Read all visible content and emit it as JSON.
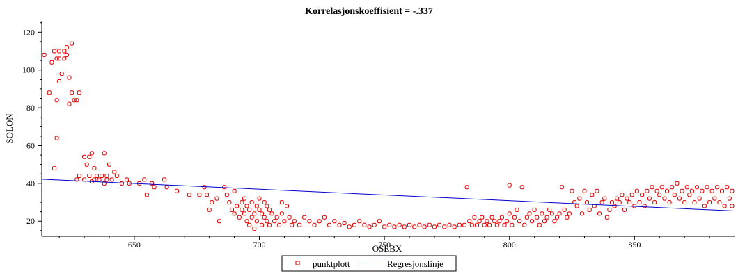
{
  "chart_data": {
    "type": "scatter",
    "title": "Korrelasjonskoeffisient =  -.337",
    "xlabel": "OSEBX",
    "ylabel": "SOLON",
    "xlim": [
      613,
      890
    ],
    "ylim": [
      12,
      126
    ],
    "x_ticks": [
      650,
      700,
      750,
      800,
      850
    ],
    "y_ticks": [
      20,
      40,
      60,
      80,
      100,
      120
    ],
    "legend_placement": "bottom-center",
    "colors": {
      "points": "#e00000",
      "line": "#0000cc",
      "axis": "#000000"
    },
    "series": [
      {
        "name": "punktplott",
        "kind": "scatter",
        "points": [
          [
            614,
            108
          ],
          [
            616,
            88
          ],
          [
            617,
            104
          ],
          [
            618,
            110
          ],
          [
            618,
            48
          ],
          [
            619,
            84
          ],
          [
            619,
            64
          ],
          [
            619,
            106
          ],
          [
            620,
            94
          ],
          [
            620,
            106
          ],
          [
            620,
            110
          ],
          [
            621,
            98
          ],
          [
            622,
            106
          ],
          [
            622,
            110
          ],
          [
            623,
            108
          ],
          [
            623,
            112
          ],
          [
            624,
            96
          ],
          [
            624,
            82
          ],
          [
            625,
            88
          ],
          [
            625,
            114
          ],
          [
            626,
            84
          ],
          [
            627,
            84
          ],
          [
            627,
            42
          ],
          [
            628,
            88
          ],
          [
            628,
            44
          ],
          [
            630,
            54
          ],
          [
            630,
            42
          ],
          [
            631,
            50
          ],
          [
            632,
            54
          ],
          [
            632,
            44
          ],
          [
            633,
            41
          ],
          [
            633,
            56
          ],
          [
            634,
            42
          ],
          [
            634,
            48
          ],
          [
            635,
            44
          ],
          [
            636,
            42
          ],
          [
            637,
            44
          ],
          [
            638,
            56
          ],
          [
            638,
            40
          ],
          [
            639,
            42
          ],
          [
            639,
            44
          ],
          [
            640,
            50
          ],
          [
            641,
            42
          ],
          [
            642,
            46
          ],
          [
            643,
            44
          ],
          [
            645,
            40
          ],
          [
            647,
            42
          ],
          [
            648,
            40
          ],
          [
            652,
            40
          ],
          [
            654,
            42
          ],
          [
            655,
            34
          ],
          [
            657,
            40
          ],
          [
            658,
            38
          ],
          [
            662,
            42
          ],
          [
            663,
            38
          ],
          [
            667,
            36
          ],
          [
            672,
            34
          ],
          [
            676,
            34
          ],
          [
            678,
            38
          ],
          [
            679,
            34
          ],
          [
            680,
            26
          ],
          [
            681,
            30
          ],
          [
            683,
            32
          ],
          [
            684,
            20
          ],
          [
            686,
            38
          ],
          [
            687,
            34
          ],
          [
            688,
            30
          ],
          [
            689,
            26
          ],
          [
            690,
            24
          ],
          [
            690,
            36
          ],
          [
            691,
            28
          ],
          [
            692,
            22
          ],
          [
            693,
            30
          ],
          [
            693,
            26
          ],
          [
            694,
            32
          ],
          [
            694,
            24
          ],
          [
            695,
            20
          ],
          [
            695,
            28
          ],
          [
            696,
            18
          ],
          [
            696,
            26
          ],
          [
            697,
            22
          ],
          [
            697,
            30
          ],
          [
            698,
            16
          ],
          [
            698,
            24
          ],
          [
            699,
            28
          ],
          [
            699,
            20
          ],
          [
            700,
            32
          ],
          [
            700,
            26
          ],
          [
            701,
            18
          ],
          [
            701,
            24
          ],
          [
            702,
            30
          ],
          [
            702,
            22
          ],
          [
            703,
            28
          ],
          [
            703,
            20
          ],
          [
            704,
            26
          ],
          [
            704,
            18
          ],
          [
            705,
            24
          ],
          [
            706,
            20
          ],
          [
            707,
            22
          ],
          [
            708,
            18
          ],
          [
            709,
            30
          ],
          [
            709,
            24
          ],
          [
            710,
            20
          ],
          [
            711,
            28
          ],
          [
            712,
            22
          ],
          [
            713,
            18
          ],
          [
            714,
            20
          ],
          [
            716,
            18
          ],
          [
            718,
            22
          ],
          [
            720,
            20
          ],
          [
            722,
            18
          ],
          [
            724,
            20
          ],
          [
            726,
            22
          ],
          [
            728,
            18
          ],
          [
            730,
            20
          ],
          [
            732,
            18
          ],
          [
            734,
            19
          ],
          [
            736,
            17
          ],
          [
            738,
            18
          ],
          [
            740,
            20
          ],
          [
            742,
            18
          ],
          [
            744,
            17
          ],
          [
            746,
            18
          ],
          [
            748,
            20
          ],
          [
            750,
            17
          ],
          [
            752,
            18
          ],
          [
            754,
            17
          ],
          [
            756,
            18
          ],
          [
            758,
            17
          ],
          [
            760,
            18
          ],
          [
            762,
            17
          ],
          [
            764,
            18
          ],
          [
            766,
            17
          ],
          [
            768,
            18
          ],
          [
            770,
            17
          ],
          [
            772,
            18
          ],
          [
            774,
            17
          ],
          [
            776,
            18
          ],
          [
            778,
            17
          ],
          [
            780,
            18
          ],
          [
            782,
            18
          ],
          [
            783,
            38
          ],
          [
            784,
            20
          ],
          [
            785,
            18
          ],
          [
            786,
            22
          ],
          [
            787,
            18
          ],
          [
            788,
            20
          ],
          [
            789,
            22
          ],
          [
            790,
            18
          ],
          [
            791,
            20
          ],
          [
            792,
            18
          ],
          [
            793,
            22
          ],
          [
            794,
            20
          ],
          [
            795,
            18
          ],
          [
            796,
            20
          ],
          [
            797,
            22
          ],
          [
            798,
            18
          ],
          [
            799,
            20
          ],
          [
            800,
            39
          ],
          [
            800,
            24
          ],
          [
            801,
            18
          ],
          [
            802,
            22
          ],
          [
            803,
            26
          ],
          [
            804,
            20
          ],
          [
            805,
            38
          ],
          [
            806,
            18
          ],
          [
            807,
            22
          ],
          [
            808,
            24
          ],
          [
            809,
            20
          ],
          [
            810,
            26
          ],
          [
            811,
            22
          ],
          [
            812,
            18
          ],
          [
            813,
            24
          ],
          [
            814,
            20
          ],
          [
            815,
            22
          ],
          [
            816,
            26
          ],
          [
            817,
            24
          ],
          [
            818,
            20
          ],
          [
            819,
            22
          ],
          [
            820,
            24
          ],
          [
            821,
            38
          ],
          [
            822,
            26
          ],
          [
            823,
            22
          ],
          [
            824,
            24
          ],
          [
            825,
            36
          ],
          [
            826,
            30
          ],
          [
            827,
            28
          ],
          [
            828,
            32
          ],
          [
            829,
            24
          ],
          [
            830,
            36
          ],
          [
            831,
            30
          ],
          [
            832,
            26
          ],
          [
            833,
            34
          ],
          [
            834,
            28
          ],
          [
            835,
            36
          ],
          [
            836,
            24
          ],
          [
            837,
            30
          ],
          [
            838,
            32
          ],
          [
            839,
            22
          ],
          [
            840,
            26
          ],
          [
            841,
            30
          ],
          [
            842,
            28
          ],
          [
            843,
            32
          ],
          [
            844,
            30
          ],
          [
            845,
            34
          ],
          [
            846,
            26
          ],
          [
            847,
            32
          ],
          [
            848,
            30
          ],
          [
            849,
            34
          ],
          [
            850,
            28
          ],
          [
            851,
            36
          ],
          [
            852,
            30
          ],
          [
            853,
            34
          ],
          [
            854,
            28
          ],
          [
            855,
            36
          ],
          [
            856,
            32
          ],
          [
            857,
            38
          ],
          [
            858,
            30
          ],
          [
            859,
            36
          ],
          [
            860,
            34
          ],
          [
            861,
            38
          ],
          [
            862,
            32
          ],
          [
            863,
            36
          ],
          [
            864,
            30
          ],
          [
            865,
            38
          ],
          [
            866,
            34
          ],
          [
            867,
            40
          ],
          [
            868,
            32
          ],
          [
            869,
            36
          ],
          [
            870,
            30
          ],
          [
            871,
            38
          ],
          [
            872,
            34
          ],
          [
            873,
            36
          ],
          [
            874,
            30
          ],
          [
            875,
            38
          ],
          [
            876,
            32
          ],
          [
            877,
            36
          ],
          [
            878,
            28
          ],
          [
            879,
            38
          ],
          [
            880,
            30
          ],
          [
            881,
            36
          ],
          [
            882,
            32
          ],
          [
            883,
            38
          ],
          [
            884,
            30
          ],
          [
            885,
            36
          ],
          [
            886,
            28
          ],
          [
            887,
            38
          ],
          [
            888,
            32
          ],
          [
            889,
            36
          ],
          [
            889,
            28
          ]
        ]
      },
      {
        "name": "Regresjonslinje",
        "kind": "line",
        "from": [
          613,
          42.2
        ],
        "to": [
          890,
          25.4
        ]
      }
    ]
  }
}
